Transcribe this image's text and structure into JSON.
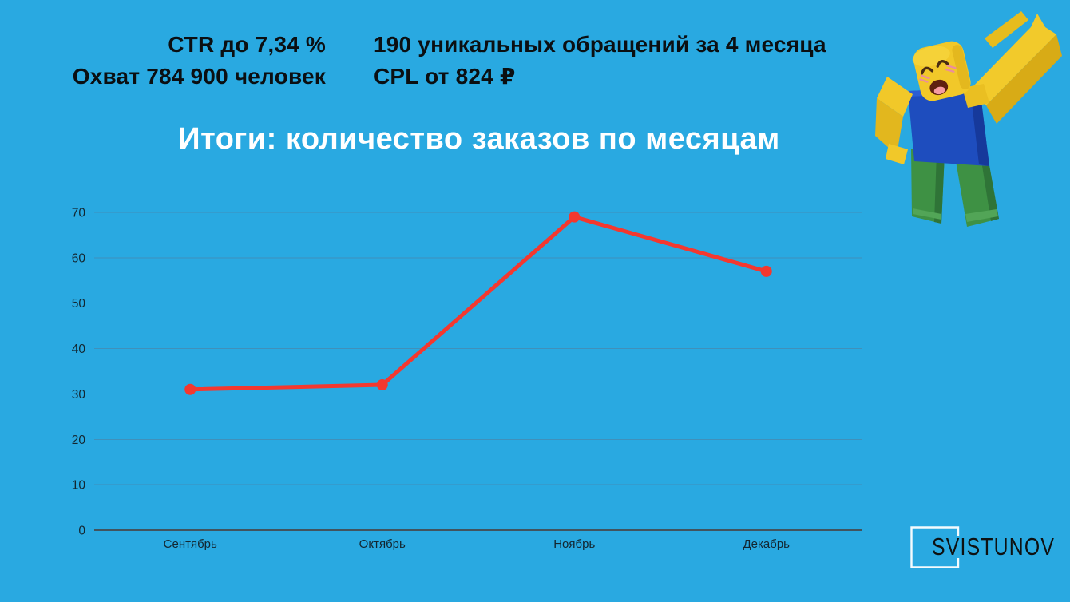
{
  "page": {
    "background": "#29A9E1"
  },
  "header": {
    "left_stats": {
      "line1": "CTR до 7,34 %",
      "line2": "Охват 784 900 человек"
    },
    "right_stats": {
      "line1": "190 уникальных обращений за 4 месяца",
      "line2": "CPL от 824 ₽"
    }
  },
  "chart_data": {
    "type": "line",
    "title": "Итоги: количество заказов по месяцам",
    "categories": [
      "Сентябрь",
      "Октябрь",
      "Ноябрь",
      "Декабрь"
    ],
    "values": [
      31,
      32,
      69,
      57
    ],
    "xlabel": "",
    "ylabel": "",
    "ylim": [
      0,
      70
    ],
    "ytick_step": 10,
    "grid": true,
    "legend": false,
    "marker": "circle",
    "colors": {
      "line": "#F4382F",
      "grid": "#4090BA",
      "axis": "#42545E",
      "labels": "#132630",
      "title": "#FFFFFF"
    }
  },
  "mascot": {
    "name": "roblox-character"
  },
  "logo": {
    "text": "SVISTUNOV"
  }
}
